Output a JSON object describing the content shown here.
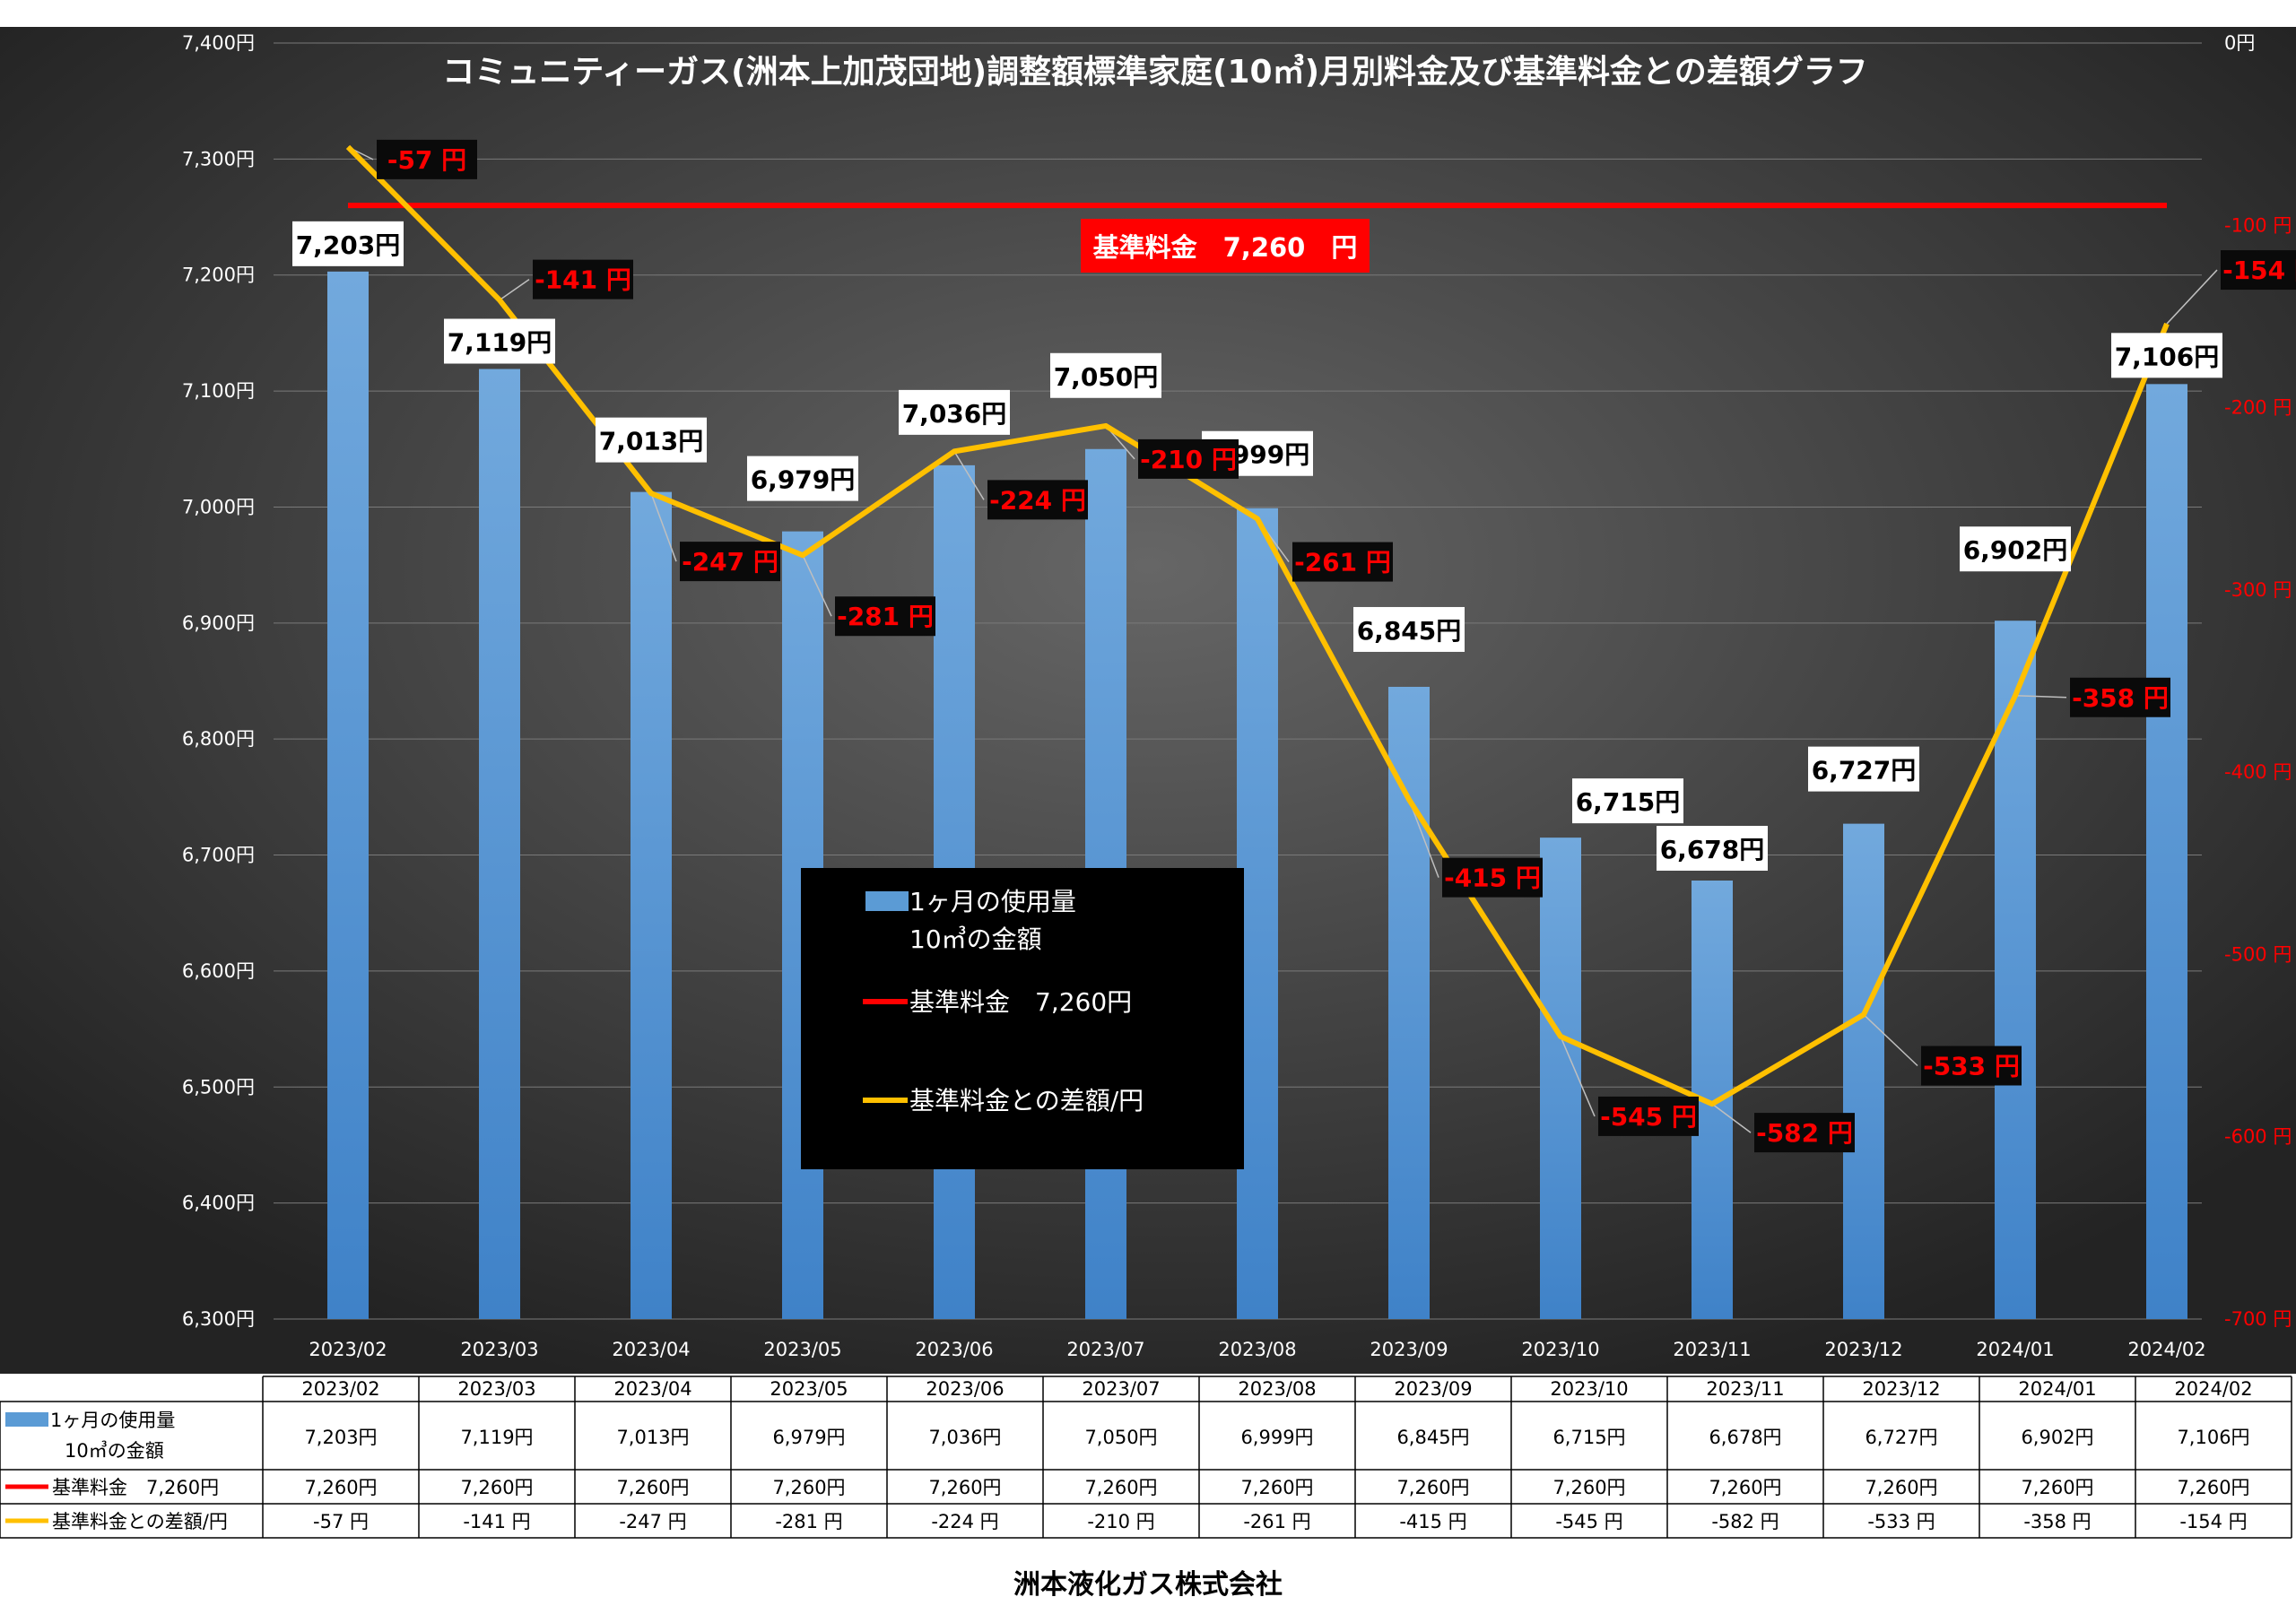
{
  "chart_data": {
    "type": "bar+line",
    "title": "コミュニティーガス(洲本上加茂団地)調整額標準家庭(10㎥)月別料金及び基準料金との差額グラフ",
    "categories": [
      "2023/02",
      "2023/03",
      "2023/04",
      "2023/05",
      "2023/06",
      "2023/07",
      "2023/08",
      "2023/09",
      "2023/10",
      "2023/11",
      "2023/12",
      "2024/01",
      "2024/02"
    ],
    "series": [
      {
        "name_line1": "1ヶ月の使用量",
        "name_line2": "10㎥の金額",
        "kind": "bar",
        "axis": "left",
        "color": "#5b9bd5",
        "values": [
          7203,
          7119,
          7013,
          6979,
          7036,
          7050,
          6999,
          6845,
          6715,
          6678,
          6727,
          6902,
          7106
        ],
        "labels": [
          "7,203円",
          "7,119円",
          "7,013円",
          "6,979円",
          "7,036円",
          "7,050円",
          "6,999円",
          "6,845円",
          "6,715円",
          "6,678円",
          "6,727円",
          "6,902円",
          "7,106円"
        ]
      },
      {
        "name": "基準料金 7,260円",
        "kind": "line",
        "axis": "left",
        "color": "#ff0000",
        "value": 7260,
        "labels": [
          "7,260円",
          "7,260円",
          "7,260円",
          "7,260円",
          "7,260円",
          "7,260円",
          "7,260円",
          "7,260円",
          "7,260円",
          "7,260円",
          "7,260円",
          "7,260円",
          "7,260円"
        ]
      },
      {
        "name": "基準料金との差額/円",
        "kind": "line",
        "axis": "right",
        "color": "#ffc000",
        "values": [
          -57,
          -141,
          -247,
          -281,
          -224,
          -210,
          -261,
          -415,
          -545,
          -582,
          -533,
          -358,
          -154
        ],
        "labels": [
          "-57 円",
          "-141 円",
          "-247 円",
          "-281 円",
          "-224 円",
          "-210 円",
          "-261 円",
          "-415 円",
          "-545 円",
          "-582 円",
          "-533 円",
          "-358 円",
          "-154 円"
        ]
      }
    ],
    "y_left": {
      "min": 6300,
      "max": 7400,
      "step": 100,
      "ticks": [
        "6,300円",
        "6,400円",
        "6,500円",
        "6,600円",
        "6,700円",
        "6,800円",
        "6,900円",
        "7,000円",
        "7,100円",
        "7,200円",
        "7,300円",
        "7,400円"
      ]
    },
    "y_right": {
      "min": -700,
      "max": 0,
      "step": 100,
      "ticks": [
        "-700 円",
        "-600 円",
        "-500 円",
        "-400 円",
        "-300 円",
        "-200 円",
        "-100 円",
        "0円"
      ]
    },
    "baseline_label": "基準料金　7,260　円",
    "legend": {
      "placement": "center",
      "bar_line1": "1ヶ月の使用量",
      "bar_line2": "10㎥の金額",
      "red": "基準料金　7,260円",
      "yellow": "基準料金との差額/円"
    },
    "table": {
      "row_bar_line1": "1ヶ月の使用量",
      "row_bar_line2": "10㎥の金額",
      "row_red": "基準料金　7,260円",
      "row_yellow": "基準料金との差額/円"
    },
    "colors": {
      "background_center": "#606060",
      "background_edge": "#232323",
      "bar": "#5b9bd5",
      "baseline": "#ff0000",
      "diff_line": "#ffc000",
      "diff_label_text": "#ff0000"
    }
  },
  "footer": "洲本液化ガス株式会社"
}
